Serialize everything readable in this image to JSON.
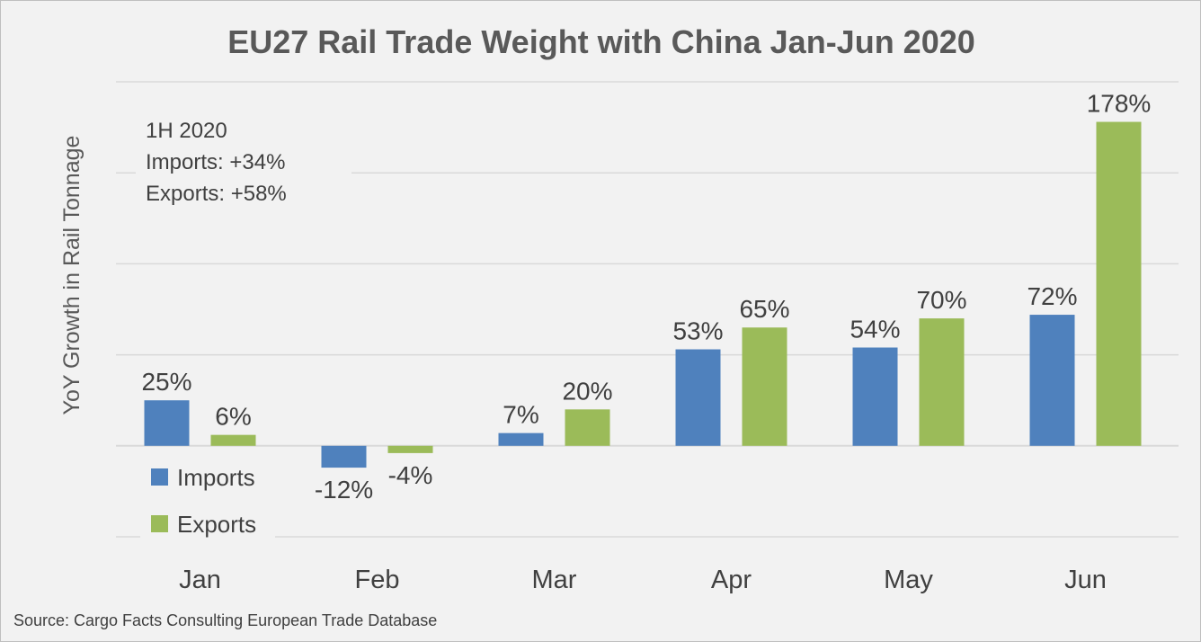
{
  "colors": {
    "imports": "#4f81bd",
    "exports": "#9bbb59",
    "background": "#f2f2f2",
    "grid": "#d9d9d9"
  },
  "chart_data": {
    "type": "bar",
    "title": "EU27 Rail Trade Weight with China Jan-Jun 2020",
    "xlabel": "",
    "ylabel": "YoY Growth in Rail Tonnage",
    "categories": [
      "Jan",
      "Feb",
      "Mar",
      "Apr",
      "May",
      "Jun"
    ],
    "series": [
      {
        "name": "Imports",
        "values": [
          25,
          -12,
          7,
          53,
          54,
          72
        ],
        "labels": [
          "25%",
          "-12%",
          "7%",
          "53%",
          "54%",
          "72%"
        ]
      },
      {
        "name": "Exports",
        "values": [
          6,
          -4,
          20,
          65,
          70,
          178
        ],
        "labels": [
          "6%",
          "-4%",
          "20%",
          "65%",
          "70%",
          "178%"
        ]
      }
    ],
    "ylim": [
      -50,
      200
    ],
    "y_gridlines": [
      -50,
      0,
      50,
      100,
      150,
      200
    ],
    "grid": true,
    "legend_position": "bottom-left",
    "annotation": [
      "1H 2020",
      "Imports: +34%",
      "Exports: +58%"
    ],
    "source": "Source: Cargo Facts Consulting European Trade Database"
  }
}
